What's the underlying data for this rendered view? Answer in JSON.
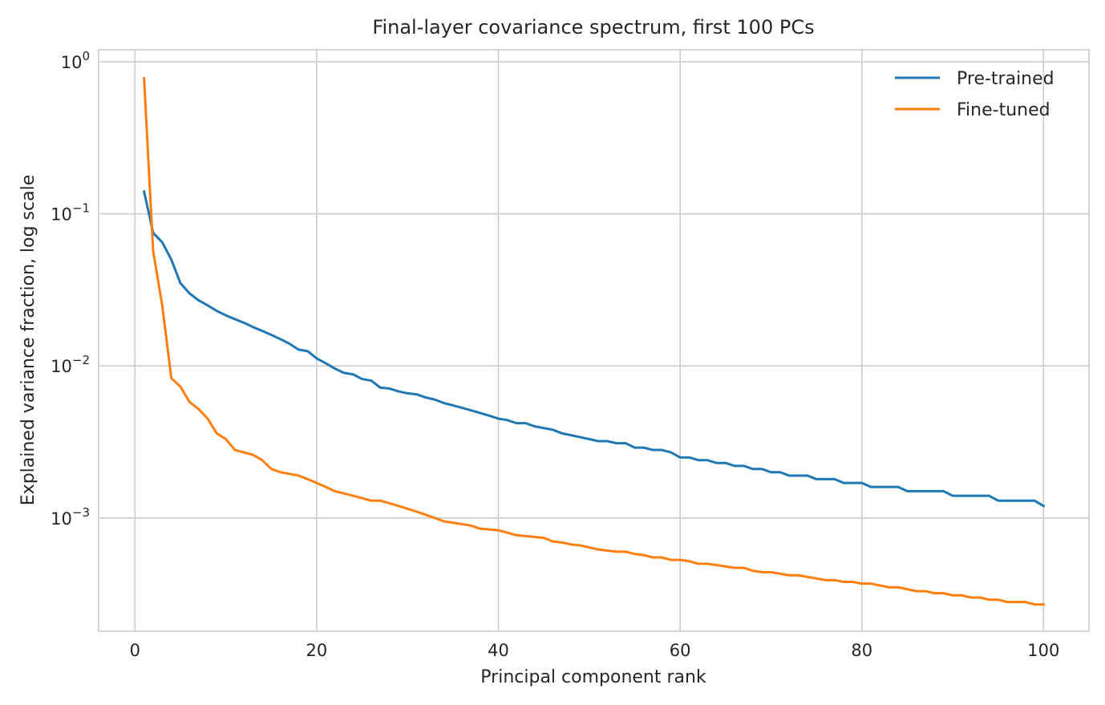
{
  "chart_data": {
    "type": "line",
    "title": "Final-layer covariance spectrum, first 100 PCs",
    "xlabel": "Principal component rank",
    "ylabel": "Explained variance fraction, log scale",
    "yscale": "log",
    "xlim": [
      -4,
      105
    ],
    "ylim": [
      0.00018,
      1.2
    ],
    "grid": true,
    "legend_position": "top-right",
    "x_ticks": [
      0,
      20,
      40,
      60,
      80,
      100
    ],
    "x_tick_labels": [
      "0",
      "20",
      "40",
      "60",
      "80",
      "100"
    ],
    "y_ticks": [
      {
        "value": 0.001,
        "base": "10",
        "exp": "−3"
      },
      {
        "value": 0.01,
        "base": "10",
        "exp": "−2"
      },
      {
        "value": 0.1,
        "base": "10",
        "exp": "−1"
      },
      {
        "value": 1,
        "base": "10",
        "exp": "0"
      }
    ],
    "series": [
      {
        "name": "Pre-trained",
        "color": "#1f77b4",
        "x_start": 1,
        "values": [
          0.14,
          0.075,
          0.065,
          0.05,
          0.035,
          0.03,
          0.027,
          0.025,
          0.023,
          0.0215,
          0.0203,
          0.0192,
          0.018,
          0.017,
          0.016,
          0.015,
          0.014,
          0.0128,
          0.0125,
          0.0112,
          0.0104,
          0.0096,
          0.009,
          0.0088,
          0.0082,
          0.008,
          0.0072,
          0.0071,
          0.0068,
          0.0066,
          0.0065,
          0.0062,
          0.006,
          0.0057,
          0.0055,
          0.0053,
          0.0051,
          0.0049,
          0.0047,
          0.0045,
          0.0044,
          0.0042,
          0.0042,
          0.004,
          0.0039,
          0.0038,
          0.0036,
          0.0035,
          0.0034,
          0.0033,
          0.0032,
          0.0032,
          0.0031,
          0.0031,
          0.0029,
          0.0029,
          0.0028,
          0.0028,
          0.0027,
          0.0025,
          0.0025,
          0.0024,
          0.0024,
          0.0023,
          0.0023,
          0.0022,
          0.0022,
          0.0021,
          0.0021,
          0.002,
          0.002,
          0.0019,
          0.0019,
          0.0019,
          0.0018,
          0.0018,
          0.0018,
          0.0017,
          0.0017,
          0.0017,
          0.0016,
          0.0016,
          0.0016,
          0.0016,
          0.0015,
          0.0015,
          0.0015,
          0.0015,
          0.0015,
          0.0014,
          0.0014,
          0.0014,
          0.0014,
          0.0014,
          0.0013,
          0.0013,
          0.0013,
          0.0013,
          0.0013,
          0.0012
        ]
      },
      {
        "name": "Fine-tuned",
        "color": "#ff7f0e",
        "x_start": 1,
        "values": [
          0.78,
          0.057,
          0.025,
          0.0083,
          0.0073,
          0.0058,
          0.0052,
          0.0045,
          0.0036,
          0.0033,
          0.0028,
          0.0027,
          0.0026,
          0.0024,
          0.0021,
          0.002,
          0.00195,
          0.0019,
          0.0018,
          0.0017,
          0.0016,
          0.0015,
          0.00145,
          0.0014,
          0.00135,
          0.0013,
          0.0013,
          0.00125,
          0.0012,
          0.00115,
          0.0011,
          0.00105,
          0.001,
          0.00095,
          0.00093,
          0.00091,
          0.00089,
          0.00085,
          0.00084,
          0.00083,
          0.0008,
          0.00077,
          0.00076,
          0.00075,
          0.00074,
          0.0007,
          0.00069,
          0.00067,
          0.00066,
          0.00064,
          0.00062,
          0.00061,
          0.0006,
          0.0006,
          0.00058,
          0.00057,
          0.00055,
          0.00055,
          0.00053,
          0.00053,
          0.00052,
          0.0005,
          0.0005,
          0.00049,
          0.00048,
          0.00047,
          0.00047,
          0.00045,
          0.00044,
          0.00044,
          0.00043,
          0.00042,
          0.00042,
          0.00041,
          0.0004,
          0.00039,
          0.00039,
          0.00038,
          0.00038,
          0.00037,
          0.00037,
          0.00036,
          0.00035,
          0.00035,
          0.00034,
          0.00033,
          0.00033,
          0.00032,
          0.00032,
          0.00031,
          0.00031,
          0.0003,
          0.0003,
          0.00029,
          0.00029,
          0.00028,
          0.00028,
          0.00028,
          0.00027,
          0.00027
        ]
      }
    ]
  }
}
